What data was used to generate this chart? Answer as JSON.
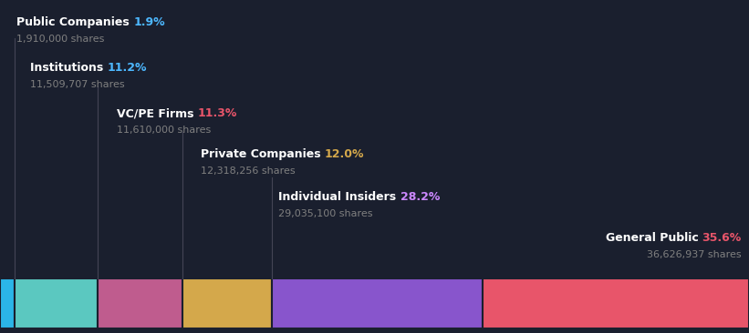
{
  "background_color": "#1a1f2e",
  "categories": [
    "Public Companies",
    "Institutions",
    "VC/PE Firms",
    "Private Companies",
    "Individual Insiders",
    "General Public"
  ],
  "percentages": [
    1.9,
    11.2,
    11.3,
    12.0,
    28.2,
    35.6
  ],
  "shares": [
    "1,910,000 shares",
    "11,509,707 shares",
    "11,610,000 shares",
    "12,318,256 shares",
    "29,035,100 shares",
    "36,626,937 shares"
  ],
  "pct_labels": [
    "1.9%",
    "11.2%",
    "11.3%",
    "12.0%",
    "28.2%",
    "35.6%"
  ],
  "bar_colors": [
    "#2bb5e8",
    "#5bc8c0",
    "#bf5c8e",
    "#d4a84b",
    "#8855cc",
    "#e8556a"
  ],
  "pct_colors": [
    "#4db8ff",
    "#4db8ff",
    "#e8556a",
    "#d4a84b",
    "#cc88ff",
    "#e8556a"
  ],
  "text_color": "#ffffff",
  "shares_color": "#808080",
  "line_color": "#444455"
}
